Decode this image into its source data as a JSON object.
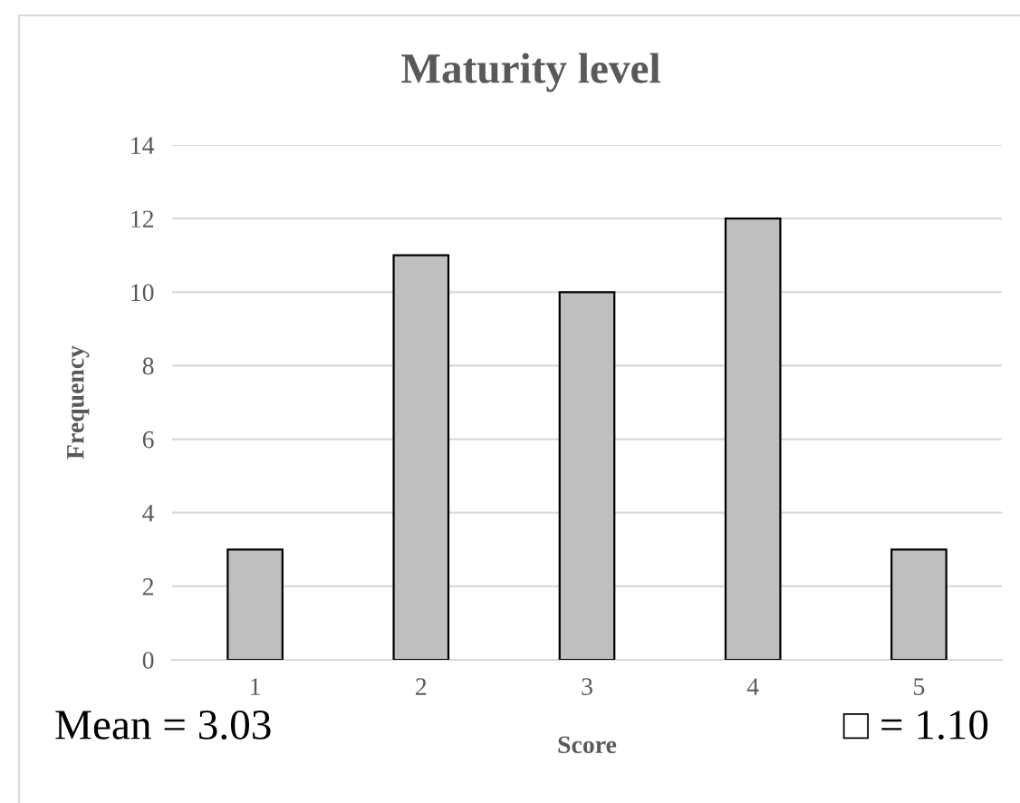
{
  "chart_data": {
    "type": "bar",
    "title": "Maturity level",
    "xlabel": "Score",
    "ylabel": "Frequency",
    "categories": [
      "1",
      "2",
      "3",
      "4",
      "5"
    ],
    "values": [
      3,
      11,
      10,
      12,
      3
    ],
    "color": "#bfbfbf",
    "ylim": [
      0,
      14
    ],
    "yticks": [
      0,
      2,
      4,
      6,
      8,
      10,
      12,
      14
    ],
    "grid": "y",
    "annotations": [
      "Mean = 3.03",
      "□ = 1.10"
    ]
  }
}
